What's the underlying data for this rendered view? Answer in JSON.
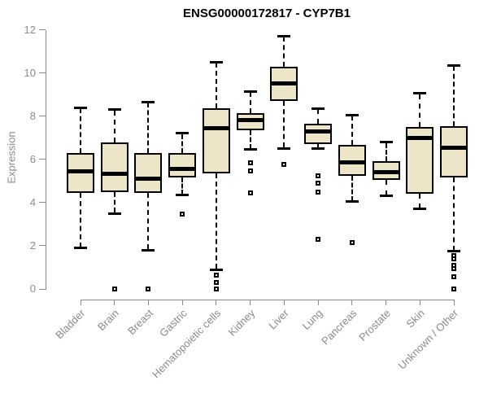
{
  "chart_data": {
    "type": "boxplot",
    "title": "ENSG00000172817 - CYP7B1",
    "ylabel": "Expression",
    "xlabel": "",
    "ylim": [
      0,
      12
    ],
    "yticks": [
      0,
      2,
      4,
      6,
      8,
      10,
      12
    ],
    "grid": false,
    "legend": null,
    "categories": [
      "Bladder",
      "Brain",
      "Breast",
      "Gastric",
      "Hematopoietic cells",
      "Kidney",
      "Liver",
      "Lung",
      "Pancreas",
      "Prostate",
      "Skin",
      "Unknown / Other"
    ],
    "series": [
      {
        "name": "Bladder",
        "low": 1.9,
        "q1": 4.45,
        "median": 5.45,
        "q3": 6.3,
        "high": 8.4,
        "outliers": []
      },
      {
        "name": "Brain",
        "low": 3.5,
        "q1": 4.5,
        "median": 5.35,
        "q3": 6.8,
        "high": 8.3,
        "outliers": [
          0
        ]
      },
      {
        "name": "Breast",
        "low": 1.8,
        "q1": 4.45,
        "median": 5.1,
        "q3": 6.3,
        "high": 8.65,
        "outliers": [
          0
        ]
      },
      {
        "name": "Gastric",
        "low": 4.35,
        "q1": 5.15,
        "median": 5.55,
        "q3": 6.3,
        "high": 7.2,
        "outliers": [
          3.45
        ]
      },
      {
        "name": "Hematopoietic cells",
        "low": 0.9,
        "q1": 5.35,
        "median": 7.45,
        "q3": 8.35,
        "high": 10.5,
        "outliers": [
          0.65,
          0.3,
          0
        ]
      },
      {
        "name": "Kidney",
        "low": 6.45,
        "q1": 7.35,
        "median": 7.8,
        "q3": 8.15,
        "high": 9.15,
        "outliers": [
          5.85,
          5.45,
          4.45
        ]
      },
      {
        "name": "Liver",
        "low": 6.5,
        "q1": 8.7,
        "median": 9.5,
        "q3": 10.3,
        "high": 11.7,
        "outliers": [
          5.75
        ]
      },
      {
        "name": "Lung",
        "low": 6.5,
        "q1": 6.7,
        "median": 7.3,
        "q3": 7.65,
        "high": 8.35,
        "outliers": [
          5.25,
          4.9,
          4.5,
          2.3
        ]
      },
      {
        "name": "Pancreas",
        "low": 4.05,
        "q1": 5.25,
        "median": 5.85,
        "q3": 6.65,
        "high": 8.05,
        "outliers": [
          2.15
        ]
      },
      {
        "name": "Prostate",
        "low": 4.3,
        "q1": 5.05,
        "median": 5.4,
        "q3": 5.9,
        "high": 6.8,
        "outliers": []
      },
      {
        "name": "Skin",
        "low": 3.7,
        "q1": 4.4,
        "median": 7.0,
        "q3": 7.5,
        "high": 9.05,
        "outliers": []
      },
      {
        "name": "Unknown / Other",
        "low": 1.75,
        "q1": 5.15,
        "median": 6.55,
        "q3": 7.55,
        "high": 10.35,
        "outliers": [
          1.55,
          1.4,
          1.1,
          0.95,
          0.55,
          0
        ]
      }
    ],
    "colors": {
      "box_fill": "#ece5c8",
      "box_border": "#000000",
      "median": "#000000",
      "axis": "#8a8a8a",
      "tick_label": "#8a8a8a",
      "title": "#000000"
    }
  }
}
